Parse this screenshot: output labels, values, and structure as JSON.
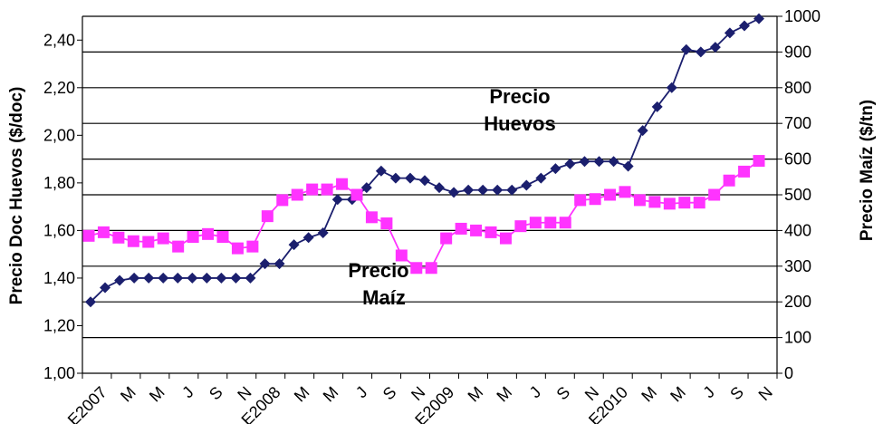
{
  "chart_data": {
    "type": "line",
    "x_labels": [
      "E2007",
      "M",
      "M",
      "J",
      "S",
      "N",
      "E2008",
      "M",
      "M",
      "J",
      "S",
      "N",
      "E2009",
      "M",
      "M",
      "J",
      "S",
      "N",
      "E2010",
      "M",
      "M",
      "J",
      "S",
      "N"
    ],
    "y_left": {
      "label": "Precio Doc Huevos ($/doc)",
      "range": [
        1.0,
        2.5
      ],
      "ticks": [
        "1,00",
        "1,20",
        "1,40",
        "1,60",
        "1,80",
        "2,00",
        "2,20",
        "2,40"
      ]
    },
    "y_right": {
      "label": "Precio Maíz ($/tn)",
      "range": [
        0,
        1000
      ],
      "ticks": [
        "0",
        "100",
        "200",
        "300",
        "400",
        "500",
        "600",
        "700",
        "800",
        "900",
        "1000"
      ]
    },
    "grid": true,
    "series": [
      {
        "name": "Precio Huevos",
        "axis": "left",
        "color": "#1b1f6e",
        "marker": "diamond",
        "values": [
          1.3,
          1.36,
          1.39,
          1.4,
          1.4,
          1.4,
          1.4,
          1.4,
          1.4,
          1.4,
          1.4,
          1.4,
          1.46,
          1.46,
          1.54,
          1.57,
          1.59,
          1.73,
          1.73,
          1.78,
          1.85,
          1.82,
          1.82,
          1.81,
          1.78,
          1.76,
          1.77,
          1.77,
          1.77,
          1.77,
          1.79,
          1.82,
          1.86,
          1.88,
          1.89,
          1.89,
          1.89,
          1.87,
          2.02,
          2.12,
          2.2,
          2.36,
          2.35,
          2.37,
          2.43,
          2.46,
          2.49
        ]
      },
      {
        "name": "Precio Maíz",
        "axis": "right",
        "color": "#ff33ff",
        "marker": "square",
        "values": [
          385,
          395,
          380,
          370,
          368,
          378,
          355,
          382,
          390,
          382,
          350,
          355,
          440,
          485,
          500,
          515,
          515,
          530,
          500,
          437,
          420,
          330,
          295,
          295,
          378,
          405,
          400,
          395,
          378,
          412,
          422,
          422,
          422,
          485,
          488,
          500,
          508,
          485,
          480,
          475,
          478,
          478,
          500,
          540,
          565,
          595
        ]
      }
    ],
    "annotations": [
      {
        "lines": [
          "Precio",
          "Huevos"
        ]
      },
      {
        "lines": [
          "Precio",
          "Maíz"
        ]
      }
    ]
  }
}
